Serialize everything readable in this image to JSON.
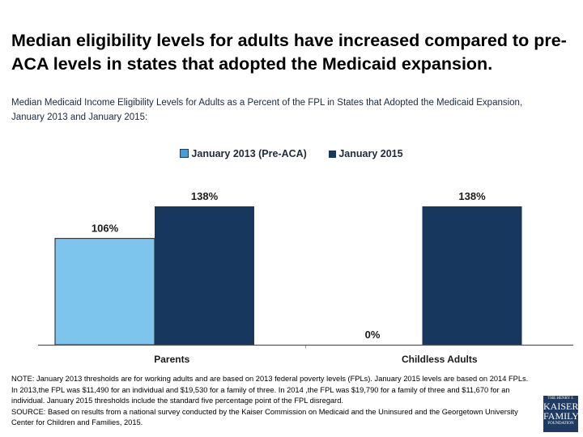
{
  "title": "Median eligibility levels for adults have increased compared to pre-ACA levels in states that adopted the Medicaid expansion.",
  "chart_data": {
    "type": "bar",
    "title": "Median Medicaid Income Eligibility Levels for Adults as a Percent of the FPL in States that Adopted the Medicaid Expansion, January 2013 and January 2015:",
    "categories": [
      "Parents",
      "Childless Adults"
    ],
    "series": [
      {
        "name": "January 2013 (Pre-ACA)",
        "values": [
          106,
          0
        ],
        "color": "#7dc5ec"
      },
      {
        "name": "January 2015",
        "values": [
          138,
          138
        ],
        "color": "#17375e"
      }
    ],
    "data_labels": [
      [
        "106%",
        "0%"
      ],
      [
        "138%",
        "138%"
      ]
    ],
    "ylim": [
      0,
      150
    ],
    "grid": false,
    "legend": "top-center",
    "xlabel": "",
    "ylabel": ""
  },
  "notes": {
    "note": "NOTE: January 2013 thresholds are for working adults and are based on 2013 federal poverty levels (FPLs). January 2015 levels are based on 2014 FPLs. In 2013,the FPL was $11,490 for an individual and $19,530 for a family of three. In 2014 ,the FPL was $19,790 for a family of three and $11,670 for an individual. January 2015 thresholds include the standard five percentage point of the FPL disregard.",
    "source": "SOURCE: Based on results from a national survey conducted by the Kaiser Commission on Medicaid and the Uninsured and the Georgetown University Center for Children and Families, 2015."
  },
  "logo": {
    "line1": "THE HENRY J.",
    "line2": "KAISER",
    "line3": "FAMILY",
    "line4": "FOUNDATION"
  }
}
